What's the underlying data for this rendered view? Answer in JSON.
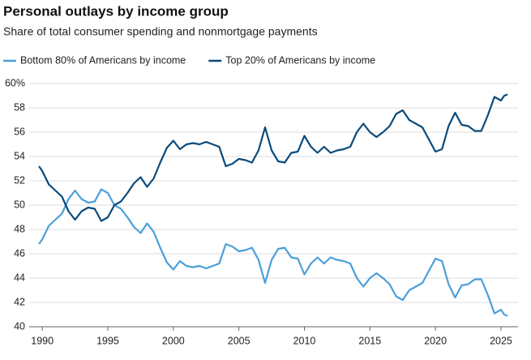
{
  "chart_data": {
    "type": "line",
    "title": "Personal outlays by income group",
    "subtitle": "Share of total consumer spending and nonmortgage payments",
    "x": [
      1989.75,
      1990,
      1990.5,
      1991,
      1991.5,
      1992,
      1992.5,
      1993,
      1993.5,
      1994,
      1994.5,
      1995,
      1995.5,
      1996,
      1996.5,
      1997,
      1997.5,
      1998,
      1998.5,
      1999,
      1999.5,
      2000,
      2000.5,
      2001,
      2001.5,
      2002,
      2002.5,
      2003,
      2003.5,
      2004,
      2004.5,
      2005,
      2005.5,
      2006,
      2006.5,
      2007,
      2007.5,
      2008,
      2008.5,
      2009,
      2009.5,
      2010,
      2010.5,
      2011,
      2011.5,
      2012,
      2012.5,
      2013,
      2013.5,
      2014,
      2014.5,
      2015,
      2015.5,
      2016,
      2016.5,
      2017,
      2017.5,
      2018,
      2018.5,
      2019,
      2019.5,
      2020,
      2020.5,
      2021,
      2021.5,
      2022,
      2022.5,
      2023,
      2023.5,
      2024,
      2024.5,
      2025,
      2025.25,
      2025.5
    ],
    "series": [
      {
        "name": "Bottom 80% of Americans by income",
        "color": "#4a9fd8",
        "values": [
          46.8,
          47.2,
          48.3,
          48.8,
          49.3,
          50.5,
          51.2,
          50.5,
          50.2,
          50.3,
          51.3,
          51.0,
          50.0,
          49.7,
          49.0,
          48.2,
          47.7,
          48.5,
          47.8,
          46.5,
          45.3,
          44.7,
          45.4,
          45.0,
          44.9,
          45.0,
          44.8,
          45.0,
          45.2,
          46.8,
          46.6,
          46.2,
          46.3,
          46.5,
          45.5,
          43.6,
          45.5,
          46.4,
          46.5,
          45.7,
          45.6,
          44.3,
          45.2,
          45.7,
          45.2,
          45.7,
          45.5,
          45.4,
          45.2,
          44.0,
          43.3,
          44.0,
          44.4,
          44.0,
          43.5,
          42.5,
          42.2,
          43.0,
          43.3,
          43.6,
          44.6,
          45.6,
          45.4,
          43.5,
          42.4,
          43.4,
          43.5,
          43.9,
          43.9,
          42.6,
          41.1,
          41.4,
          41.0,
          40.9
        ]
      },
      {
        "name": "Top 20% of Americans by income",
        "color": "#0a4a7a",
        "values": [
          53.2,
          52.8,
          51.7,
          51.2,
          50.7,
          49.5,
          48.8,
          49.5,
          49.8,
          49.7,
          48.7,
          49.0,
          50.0,
          50.3,
          51.0,
          51.8,
          52.3,
          51.5,
          52.2,
          53.5,
          54.7,
          55.3,
          54.6,
          55.0,
          55.1,
          55.0,
          55.2,
          55.0,
          54.8,
          53.2,
          53.4,
          53.8,
          53.7,
          53.5,
          54.5,
          56.4,
          54.5,
          53.6,
          53.5,
          54.3,
          54.4,
          55.7,
          54.8,
          54.3,
          54.8,
          54.3,
          54.5,
          54.6,
          54.8,
          56.0,
          56.7,
          56.0,
          55.6,
          56.0,
          56.5,
          57.5,
          57.8,
          57.0,
          56.7,
          56.4,
          55.4,
          54.4,
          54.6,
          56.5,
          57.6,
          56.6,
          56.5,
          56.1,
          56.1,
          57.4,
          58.9,
          58.6,
          59.0,
          59.1
        ]
      }
    ],
    "xlim": [
      1989,
      2026.3
    ],
    "xticks": [
      1990,
      1995,
      2000,
      2005,
      2010,
      2015,
      2020,
      2025
    ],
    "ylim": [
      40,
      60
    ],
    "yticks": [
      40,
      42,
      44,
      46,
      48,
      50,
      52,
      54,
      56,
      58,
      {
        "value": 60,
        "label": "60%"
      }
    ],
    "grid": true
  }
}
